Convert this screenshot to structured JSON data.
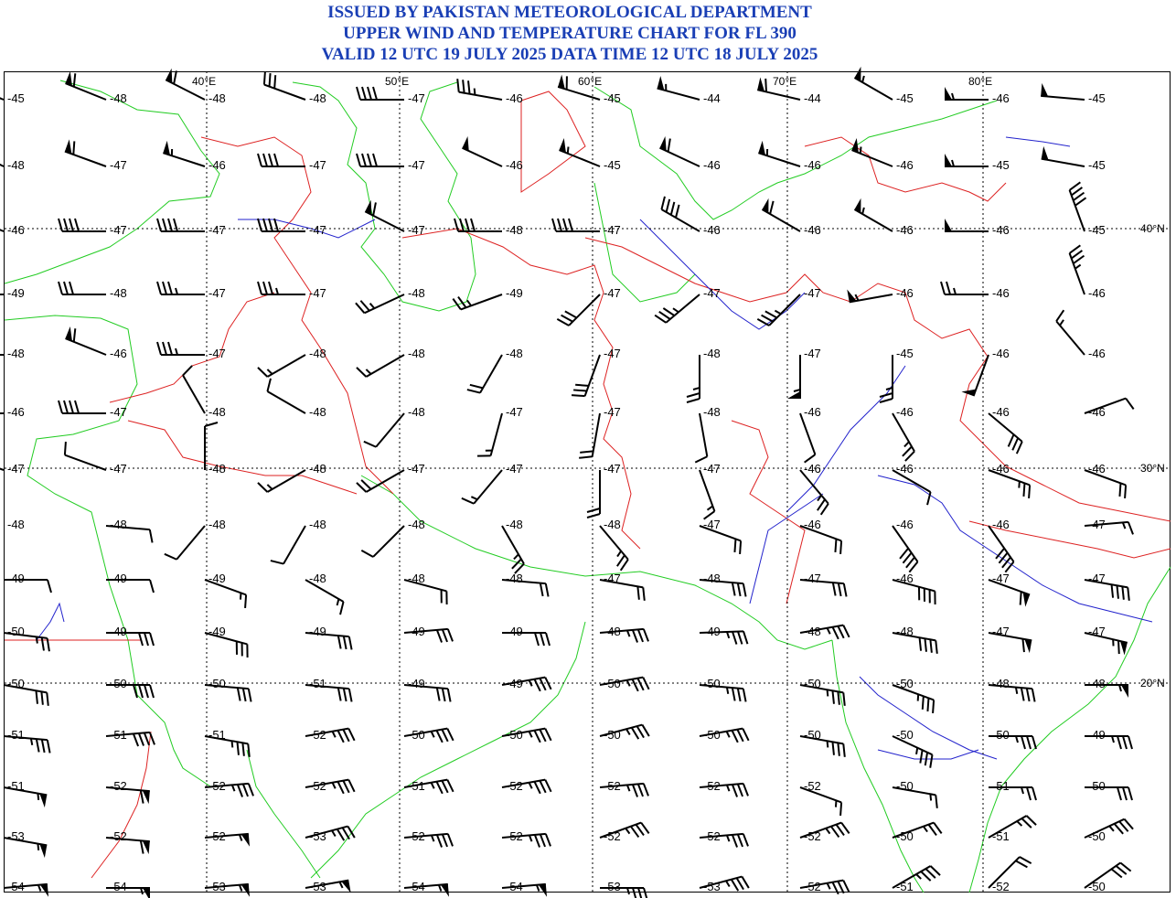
{
  "header": {
    "line1": "ISSUED BY PAKISTAN METEOROLOGICAL DEPARTMENT",
    "line2": "UPPER WIND AND TEMPERATURE CHART FOR FL 390",
    "line3": "VALID 12 UTC 19 JULY 2025 DATA TIME 12 UTC 18 JULY 2025"
  },
  "lon_labels": [
    "40°E",
    "50°E",
    "60°E",
    "70°E",
    "80°E"
  ],
  "lat_labels": [
    "40°N",
    "30°N",
    "20°N"
  ],
  "colors": {
    "title": "#1a3fb5",
    "coast": "#22cc22",
    "border": "#dd2222",
    "river": "#2222cc",
    "grid": "#000000"
  },
  "rows": [
    [
      "-45",
      "-48",
      "-48",
      "-48",
      "-47",
      "-46",
      "-45",
      "-44",
      "-44",
      "-45",
      "-46",
      "-45"
    ],
    [
      "-48",
      "-47",
      "-46",
      "-47",
      "-47",
      "-46",
      "-45",
      "-46",
      "-46",
      "-46",
      "-45",
      "-45"
    ],
    [
      "-46",
      "-47",
      "-47",
      "-47",
      "-47",
      "-48",
      "-47",
      "-46",
      "-46",
      "-46",
      "-46",
      "-45"
    ],
    [
      "-49",
      "-48",
      "-47",
      "-47",
      "-48",
      "-49",
      "-47",
      "-47",
      "-47",
      "-46",
      "-46",
      "-46"
    ],
    [
      "-48",
      "-46",
      "-47",
      "-48",
      "-48",
      "-48",
      "-47",
      "-48",
      "-47",
      "-45",
      "-46",
      "-46"
    ],
    [
      "-46",
      "-47",
      "-48",
      "-48",
      "-48",
      "-47",
      "-47",
      "-48",
      "-46",
      "-46",
      "-46",
      "-46"
    ],
    [
      "-47",
      "-47",
      "-48",
      "-48",
      "-47",
      "-47",
      "-47",
      "-47",
      "-46",
      "-46",
      "-46",
      "-46"
    ],
    [
      "-48",
      "-48",
      "-48",
      "-48",
      "-48",
      "-48",
      "-48",
      "-47",
      "-46",
      "-46",
      "-46",
      "-47"
    ],
    [
      "-49",
      "-49",
      "-49",
      "-48",
      "-48",
      "-48",
      "-47",
      "-48",
      "-47",
      "-46",
      "-47",
      "-47"
    ],
    [
      "-50",
      "-49",
      "-49",
      "-49",
      "-49",
      "-49",
      "-48",
      "-49",
      "-48",
      "-48",
      "-47",
      "-47"
    ],
    [
      "-50",
      "-50",
      "-50",
      "-51",
      "-49",
      "-49",
      "-50",
      "-50",
      "-50",
      "-50",
      "-48",
      "-48"
    ],
    [
      "-51",
      "-51",
      "-51",
      "-52",
      "-50",
      "-50",
      "-50",
      "-50",
      "-50",
      "-50",
      "-50",
      "-49"
    ],
    [
      "-51",
      "-52",
      "-52",
      "-52",
      "-51",
      "-52",
      "-52",
      "-52",
      "-52",
      "-50",
      "-51",
      "-50"
    ],
    [
      "-53",
      "-52",
      "-52",
      "-53",
      "-52",
      "-52",
      "-52",
      "-52",
      "-52",
      "-50",
      "-51",
      "-50"
    ],
    [
      "-54",
      "-54",
      "-53",
      "-53",
      "-54",
      "-54",
      "-53",
      "-53",
      "-52",
      "-51",
      "-52",
      "-50"
    ]
  ],
  "winds": [
    [
      {
        "d": 292,
        "s": 60
      },
      {
        "d": 292,
        "s": 60
      },
      {
        "d": 297,
        "s": 60
      },
      {
        "d": 290,
        "s": 30
      },
      {
        "d": 270,
        "s": 40
      },
      {
        "d": 280,
        "s": 35
      },
      {
        "d": 287,
        "s": 60
      },
      {
        "d": 285,
        "s": 55
      },
      {
        "d": 283,
        "s": 60
      },
      {
        "d": 300,
        "s": 55
      },
      {
        "d": 270,
        "s": 55
      },
      {
        "d": 275,
        "s": 50
      }
    ],
    [
      {
        "d": 297,
        "s": 65
      },
      {
        "d": 290,
        "s": 60
      },
      {
        "d": 288,
        "s": 55
      },
      {
        "d": 270,
        "s": 40
      },
      {
        "d": 270,
        "s": 40
      },
      {
        "d": 295,
        "s": 50
      },
      {
        "d": 292,
        "s": 55
      },
      {
        "d": 295,
        "s": 60
      },
      {
        "d": 288,
        "s": 55
      },
      {
        "d": 292,
        "s": 55
      },
      {
        "d": 270,
        "s": 55
      },
      {
        "d": 280,
        "s": 50
      }
    ],
    [
      {
        "d": 293,
        "s": 60
      },
      {
        "d": 270,
        "s": 40
      },
      {
        "d": 270,
        "s": 40
      },
      {
        "d": 270,
        "s": 40
      },
      {
        "d": 297,
        "s": 60
      },
      {
        "d": 270,
        "s": 40
      },
      {
        "d": 270,
        "s": 40
      },
      {
        "d": 300,
        "s": 40
      },
      {
        "d": 300,
        "s": 60
      },
      {
        "d": 300,
        "s": 55
      },
      {
        "d": 270,
        "s": 50
      },
      {
        "d": 340,
        "s": 40
      }
    ],
    [
      {
        "d": 270,
        "s": 30
      },
      {
        "d": 270,
        "s": 30
      },
      {
        "d": 270,
        "s": 35
      },
      {
        "d": 270,
        "s": 35
      },
      {
        "d": 245,
        "s": 25
      },
      {
        "d": 250,
        "s": 25
      },
      {
        "d": 225,
        "s": 30
      },
      {
        "d": 230,
        "s": 35
      },
      {
        "d": 225,
        "s": 35
      },
      {
        "d": 260,
        "s": 55
      },
      {
        "d": 270,
        "s": 25
      },
      {
        "d": 340,
        "s": 35
      }
    ],
    [
      {
        "d": 270,
        "s": 35
      },
      {
        "d": 292,
        "s": 60
      },
      {
        "d": 270,
        "s": 35
      },
      {
        "d": 240,
        "s": 15
      },
      {
        "d": 240,
        "s": 15
      },
      {
        "d": 210,
        "s": 20
      },
      {
        "d": 200,
        "s": 30
      },
      {
        "d": 180,
        "s": 25
      },
      {
        "d": 180,
        "s": 55
      },
      {
        "d": 180,
        "s": 25
      },
      {
        "d": 200,
        "s": 50
      },
      {
        "d": 320,
        "s": 15
      }
    ],
    [
      {
        "d": 270,
        "s": 40
      },
      {
        "d": 270,
        "s": 40
      },
      {
        "d": 330,
        "s": 10
      },
      {
        "d": 300,
        "s": 10
      },
      {
        "d": 220,
        "s": 10
      },
      {
        "d": 195,
        "s": 15
      },
      {
        "d": 190,
        "s": 20
      },
      {
        "d": 170,
        "s": 10
      },
      {
        "d": 160,
        "s": 10
      },
      {
        "d": 150,
        "s": 25
      },
      {
        "d": 130,
        "s": 30
      },
      {
        "d": 70,
        "s": 10
      }
    ],
    [
      {
        "d": 290,
        "s": 15
      },
      {
        "d": 290,
        "s": 10
      },
      {
        "d": 0,
        "s": 10
      },
      {
        "d": 240,
        "s": 15
      },
      {
        "d": 240,
        "s": 20
      },
      {
        "d": 220,
        "s": 15
      },
      {
        "d": 180,
        "s": 20
      },
      {
        "d": 160,
        "s": 15
      },
      {
        "d": 140,
        "s": 25
      },
      {
        "d": 120,
        "s": 10
      },
      {
        "d": 110,
        "s": 25
      },
      {
        "d": 110,
        "s": 20
      }
    ],
    [
      {
        "d": 0,
        "s": 0
      },
      {
        "d": 95,
        "s": 10
      },
      {
        "d": 220,
        "s": 10
      },
      {
        "d": 210,
        "s": 10
      },
      {
        "d": 225,
        "s": 10
      },
      {
        "d": 150,
        "s": 25
      },
      {
        "d": 140,
        "s": 25
      },
      {
        "d": 110,
        "s": 20
      },
      {
        "d": 110,
        "s": 20
      },
      {
        "d": 145,
        "s": 40
      },
      {
        "d": 145,
        "s": 40
      },
      {
        "d": 85,
        "s": 15
      }
    ],
    [
      {
        "d": 90,
        "s": 10
      },
      {
        "d": 90,
        "s": 10
      },
      {
        "d": 110,
        "s": 15
      },
      {
        "d": 120,
        "s": 15
      },
      {
        "d": 105,
        "s": 20
      },
      {
        "d": 95,
        "s": 20
      },
      {
        "d": 100,
        "s": 20
      },
      {
        "d": 95,
        "s": 30
      },
      {
        "d": 95,
        "s": 30
      },
      {
        "d": 105,
        "s": 40
      },
      {
        "d": 110,
        "s": 60
      },
      {
        "d": 100,
        "s": 40
      }
    ],
    [
      {
        "d": 97,
        "s": 25
      },
      {
        "d": 90,
        "s": 30
      },
      {
        "d": 105,
        "s": 30
      },
      {
        "d": 95,
        "s": 30
      },
      {
        "d": 85,
        "s": 30
      },
      {
        "d": 90,
        "s": 30
      },
      {
        "d": 85,
        "s": 35
      },
      {
        "d": 88,
        "s": 35
      },
      {
        "d": 80,
        "s": 35
      },
      {
        "d": 100,
        "s": 40
      },
      {
        "d": 100,
        "s": 60
      },
      {
        "d": 103,
        "s": 65
      }
    ],
    [
      {
        "d": 100,
        "s": 30
      },
      {
        "d": 90,
        "s": 40
      },
      {
        "d": 95,
        "s": 30
      },
      {
        "d": 95,
        "s": 30
      },
      {
        "d": 95,
        "s": 30
      },
      {
        "d": 80,
        "s": 35
      },
      {
        "d": 80,
        "s": 35
      },
      {
        "d": 95,
        "s": 35
      },
      {
        "d": 100,
        "s": 35
      },
      {
        "d": 110,
        "s": 35
      },
      {
        "d": 95,
        "s": 35
      },
      {
        "d": 90,
        "s": 55
      }
    ],
    [
      {
        "d": 95,
        "s": 35
      },
      {
        "d": 85,
        "s": 40
      },
      {
        "d": 100,
        "s": 35
      },
      {
        "d": 80,
        "s": 35
      },
      {
        "d": 80,
        "s": 35
      },
      {
        "d": 80,
        "s": 35
      },
      {
        "d": 75,
        "s": 35
      },
      {
        "d": 80,
        "s": 35
      },
      {
        "d": 100,
        "s": 35
      },
      {
        "d": 115,
        "s": 35
      },
      {
        "d": 90,
        "s": 35
      },
      {
        "d": 90,
        "s": 35
      }
    ],
    [
      {
        "d": 100,
        "s": 55
      },
      {
        "d": 95,
        "s": 60
      },
      {
        "d": 85,
        "s": 35
      },
      {
        "d": 80,
        "s": 35
      },
      {
        "d": 80,
        "s": 35
      },
      {
        "d": 80,
        "s": 35
      },
      {
        "d": 85,
        "s": 35
      },
      {
        "d": 85,
        "s": 35
      },
      {
        "d": 110,
        "s": 15
      },
      {
        "d": 100,
        "s": 15
      },
      {
        "d": 90,
        "s": 25
      },
      {
        "d": 90,
        "s": 30
      }
    ],
    [
      {
        "d": 100,
        "s": 55
      },
      {
        "d": 95,
        "s": 60
      },
      {
        "d": 85,
        "s": 55
      },
      {
        "d": 75,
        "s": 35
      },
      {
        "d": 85,
        "s": 35
      },
      {
        "d": 85,
        "s": 35
      },
      {
        "d": 70,
        "s": 35
      },
      {
        "d": 85,
        "s": 35
      },
      {
        "d": 70,
        "s": 35
      },
      {
        "d": 70,
        "s": 25
      },
      {
        "d": 60,
        "s": 25
      },
      {
        "d": 65,
        "s": 35
      }
    ],
    [
      {
        "d": 85,
        "s": 55
      },
      {
        "d": 90,
        "s": 55
      },
      {
        "d": 85,
        "s": 55
      },
      {
        "d": 80,
        "s": 55
      },
      {
        "d": 85,
        "s": 55
      },
      {
        "d": 85,
        "s": 55
      },
      {
        "d": 90,
        "s": 35
      },
      {
        "d": 75,
        "s": 35
      },
      {
        "d": 80,
        "s": 35
      },
      {
        "d": 60,
        "s": 35
      },
      {
        "d": 45,
        "s": 20
      },
      {
        "d": 55,
        "s": 30
      }
    ]
  ]
}
